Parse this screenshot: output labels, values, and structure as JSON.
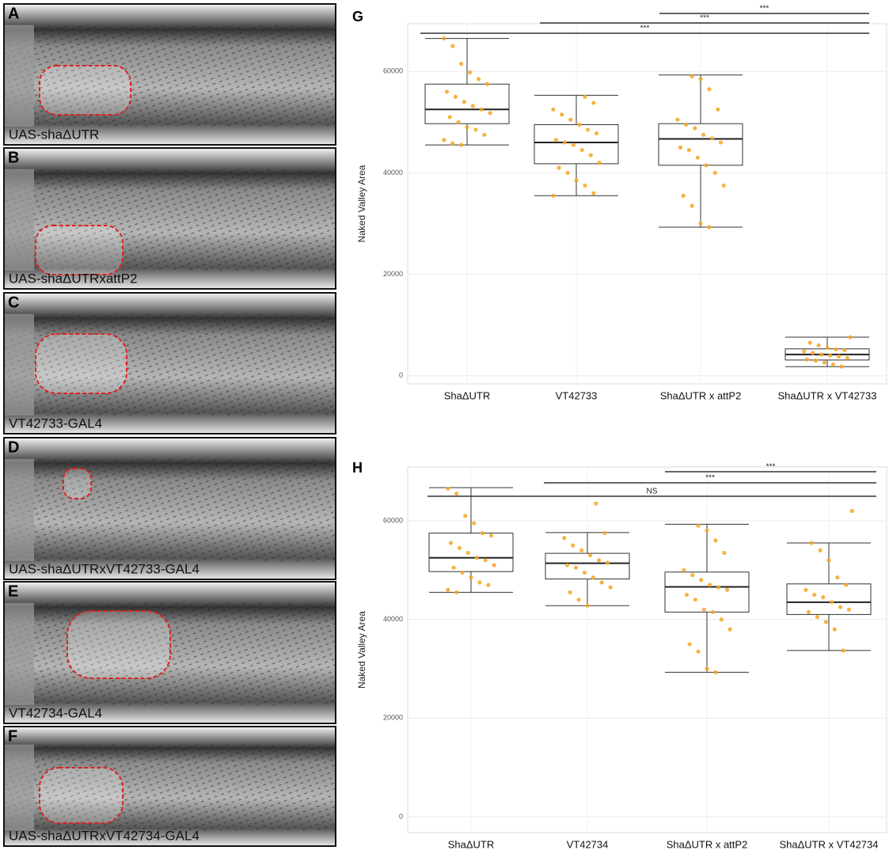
{
  "panels": [
    {
      "letter": "A",
      "label": "UAS-shaΔUTR"
    },
    {
      "letter": "B",
      "label": "UAS-shaΔUTRxattP2"
    },
    {
      "letter": "C",
      "label": "VT42733-GAL4"
    },
    {
      "letter": "D",
      "label": "UAS-shaΔUTRxVT42733-GAL4"
    },
    {
      "letter": "E",
      "label": "VT42734-GAL4"
    },
    {
      "letter": "F",
      "label": "UAS-shaΔUTRxVT42734-GAL4"
    }
  ],
  "chart_data": [
    {
      "type": "box",
      "panel_label": "G",
      "ylabel": "Naked Valley Area",
      "categories": [
        "ShaΔUTR",
        "VT42733",
        "ShaΔUTR x attP2",
        "ShaΔUTR x VT42733"
      ],
      "whislo": [
        45500,
        35500,
        29300,
        1800
      ],
      "q1": [
        49700,
        41800,
        41500,
        3100
      ],
      "median": [
        52500,
        46000,
        46700,
        4200
      ],
      "q3": [
        57500,
        49500,
        49700,
        5300
      ],
      "whishi": [
        66500,
        55300,
        59300,
        7600
      ],
      "points": [
        [
          66500,
          65000,
          61500,
          59800,
          58500,
          57500,
          56000,
          55000,
          54000,
          53200,
          52500,
          51800,
          51000,
          50000,
          49000,
          48500,
          47500,
          46500,
          45800,
          45500
        ],
        [
          55000,
          53800,
          52500,
          51500,
          50500,
          49500,
          48500,
          47800,
          46500,
          46000,
          45500,
          44500,
          43500,
          42000,
          41000,
          40000,
          38500,
          37500,
          36000,
          35500
        ],
        [
          59000,
          58500,
          56500,
          52500,
          50500,
          49500,
          48800,
          47500,
          46800,
          46000,
          45000,
          44500,
          43000,
          41500,
          40000,
          37500,
          35500,
          33500,
          30000,
          29300
        ],
        [
          7600,
          6500,
          6000,
          5500,
          5200,
          5000,
          4800,
          4500,
          4200,
          4000,
          3800,
          3500,
          3200,
          3000,
          2600,
          2200,
          1800
        ]
      ],
      "point_color": "#f5a623",
      "significance": [
        "***",
        "***",
        "***"
      ],
      "ylim": [
        -1600,
        69400
      ],
      "yticks": [
        0,
        20000,
        40000,
        60000
      ],
      "grid": true
    },
    {
      "type": "box",
      "panel_label": "H",
      "ylabel": "Naked Valley Area",
      "categories": [
        "ShaΔUTR",
        "VT42734",
        "ShaΔUTR x attP2",
        "ShaΔUTR x VT42734"
      ],
      "whislo": [
        45500,
        42800,
        29300,
        33700
      ],
      "q1": [
        49700,
        48200,
        41500,
        41000
      ],
      "median": [
        52500,
        51400,
        46600,
        43500
      ],
      "q3": [
        57500,
        53400,
        49600,
        47200
      ],
      "whishi": [
        66700,
        57600,
        59300,
        55500
      ],
      "points": [
        [
          66500,
          65500,
          61000,
          59500,
          57500,
          57000,
          55500,
          54500,
          53500,
          52500,
          52000,
          51000,
          50500,
          49500,
          48500,
          47500,
          47000,
          46000,
          45500
        ],
        [
          63500,
          57500,
          56500,
          55000,
          54000,
          53000,
          52000,
          51500,
          51000,
          50500,
          49500,
          48500,
          47500,
          46500,
          45500,
          44000,
          42800
        ],
        [
          59000,
          58000,
          56000,
          53500,
          50000,
          49000,
          48000,
          47000,
          46500,
          46000,
          45000,
          44000,
          42000,
          41500,
          40000,
          38000,
          35000,
          33500,
          30000,
          29300
        ],
        [
          62000,
          55500,
          54000,
          52000,
          48500,
          47000,
          46000,
          45000,
          44500,
          43500,
          42500,
          42000,
          41500,
          40500,
          39500,
          38000,
          33700
        ]
      ],
      "point_color": "#f5a623",
      "significance": [
        "***",
        "***",
        "NS"
      ],
      "ylim": [
        -3200,
        70900
      ],
      "yticks": [
        0,
        20000,
        40000,
        60000
      ],
      "grid": true
    }
  ]
}
